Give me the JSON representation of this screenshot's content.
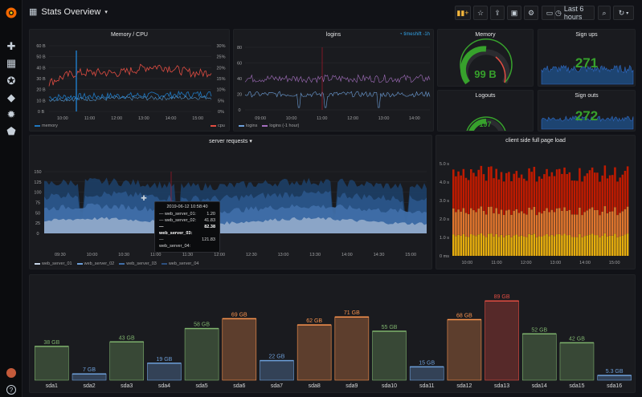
{
  "dashboard": {
    "title": "Stats Overview",
    "time_range": "Last 6 hours"
  },
  "side_icons": [
    "plus-icon",
    "grid-icon",
    "compass-icon",
    "bell-icon",
    "gear-icon",
    "shield-icon"
  ],
  "memcpu": {
    "title": "Memory / CPU",
    "left_ticks": [
      "60 B",
      "50 B",
      "40 B",
      "30 B",
      "20 B",
      "10 B",
      "0 B"
    ],
    "right_ticks": [
      "30%",
      "25%",
      "20%",
      "15%",
      "10%",
      "5%",
      "0%"
    ],
    "x_ticks": [
      "10:00",
      "11:00",
      "12:00",
      "13:00",
      "14:00",
      "15:00"
    ],
    "legend": [
      "memory",
      "cpu"
    ]
  },
  "logins": {
    "title": "logins",
    "timeshift": "timeshift -1h",
    "y_ticks": [
      "80",
      "60",
      "40",
      "20",
      "0"
    ],
    "x_ticks": [
      "09:00",
      "10:00",
      "11:00",
      "12:00",
      "13:00",
      "14:00"
    ],
    "legend": [
      "logins",
      "logins (-1 hour)"
    ]
  },
  "memory_gauge": {
    "title": "Memory",
    "value": "99 B"
  },
  "signups": {
    "title": "Sign ups",
    "value": "271"
  },
  "logouts": {
    "title": "Logouts",
    "value": "197"
  },
  "signouts": {
    "title": "Sign outs",
    "value": "272"
  },
  "server_requests": {
    "title": "server requests",
    "y_ticks": [
      "150",
      "125",
      "100",
      "75",
      "50",
      "25",
      "0"
    ],
    "x_ticks": [
      "09:30",
      "10:00",
      "10:30",
      "11:00",
      "11:30",
      "12:00",
      "12:30",
      "13:00",
      "13:30",
      "14:00",
      "14:30",
      "15:00"
    ],
    "legend": [
      "web_server_01",
      "web_server_02",
      "web_server_03",
      "web_server_04"
    ],
    "tooltip": {
      "time": "2019-06-12 10:58:40",
      "rows": [
        {
          "name": "web_server_01:",
          "value": "1.20"
        },
        {
          "name": "web_server_02:",
          "value": "41.83"
        },
        {
          "name": "web_server_03:",
          "value": "82.38"
        },
        {
          "name": "web_server_04:",
          "value": "121.83"
        }
      ]
    }
  },
  "page_load": {
    "title": "client side full page load",
    "y_ticks": [
      "5.0 s",
      "4.0 s",
      "3.0 s",
      "2.0 s",
      "1.0 s",
      "0 ms"
    ],
    "x_ticks": [
      "10:00",
      "11:00",
      "12:00",
      "13:00",
      "14:00",
      "15:00"
    ]
  },
  "chart_data": {
    "type": "bar",
    "title": "",
    "categories": [
      "sda1",
      "sda2",
      "sda3",
      "sda4",
      "sda5",
      "sda6",
      "sda7",
      "sda8",
      "sda9",
      "sda10",
      "sda11",
      "sda12",
      "sda13",
      "sda14",
      "sda15",
      "sda16"
    ],
    "values": [
      38,
      7,
      43,
      19,
      58,
      69,
      22,
      62,
      71,
      55,
      15,
      68,
      89,
      52,
      42,
      5.3
    ],
    "labels": [
      "38 GB",
      "7 GB",
      "43 GB",
      "19 GB",
      "58 GB",
      "69 GB",
      "22 GB",
      "62 GB",
      "71 GB",
      "55 GB",
      "15 GB",
      "68 GB",
      "89 GB",
      "52 GB",
      "42 GB",
      "5.3 GB"
    ],
    "colors": [
      "green",
      "blue",
      "green",
      "blue",
      "green",
      "orange",
      "blue",
      "orange",
      "orange",
      "green",
      "blue",
      "orange",
      "red",
      "green",
      "green",
      "blue"
    ],
    "ylim": [
      0,
      100
    ]
  },
  "palette": {
    "green": "#7eb26d",
    "blue": "#6d9fd9",
    "orange": "#f9934e",
    "red": "#e24d42"
  }
}
